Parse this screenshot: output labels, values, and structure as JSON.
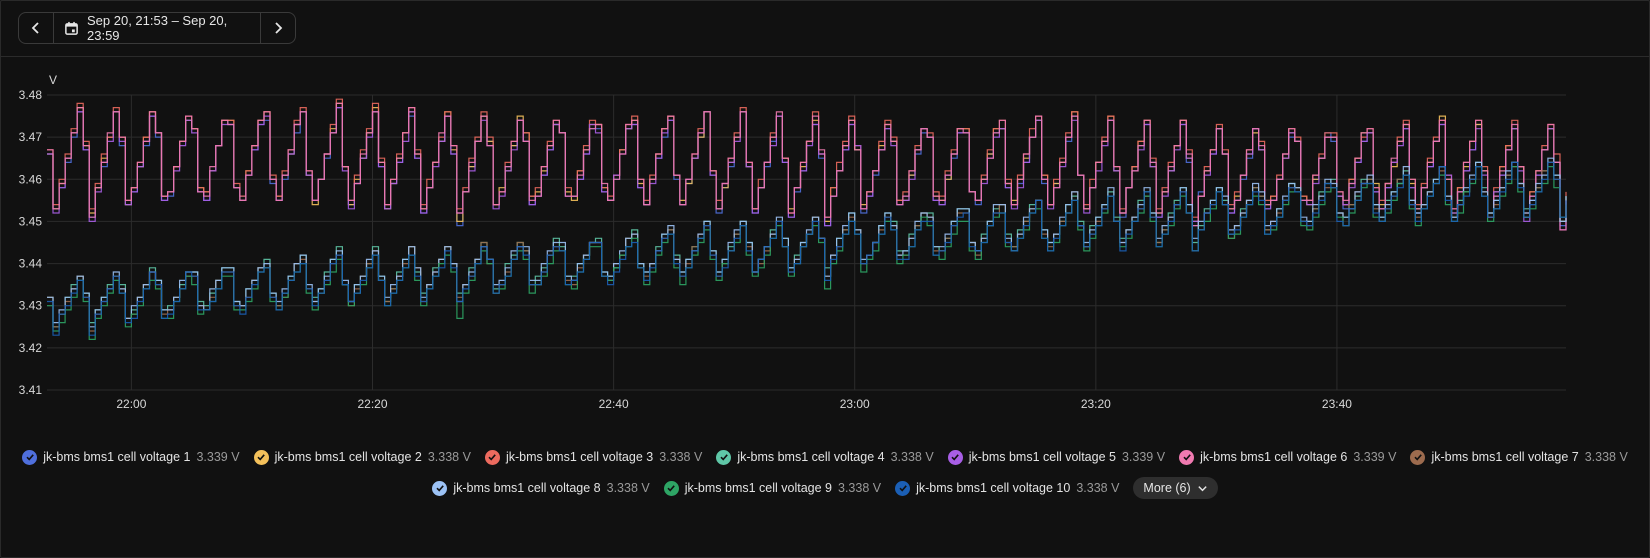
{
  "toolbar": {
    "range_label": "Sep 20, 21:53 – Sep 20, 23:59"
  },
  "icons": {
    "prev": "chevron-left-icon",
    "next": "chevron-right-icon",
    "calendar": "calendar-icon",
    "check": "check-icon",
    "more": "chevron-down-icon"
  },
  "chart_data": {
    "type": "line",
    "ylabel": "V",
    "ylim": [
      3.41,
      3.48
    ],
    "yticks": [
      "3.41",
      "3.42",
      "3.43",
      "3.44",
      "3.45",
      "3.46",
      "3.47",
      "3.48"
    ],
    "xlim": [
      "21:53",
      "23:59"
    ],
    "xticks": [
      "22:00",
      "22:20",
      "22:40",
      "23:00",
      "23:20",
      "23:40"
    ],
    "grid": true,
    "legend_position": "bottom",
    "groups": {
      "upper": {
        "cycle_minutes": 3.05,
        "peak_start": 3.479,
        "peak_end": 3.474,
        "trough_start": 3.453,
        "trough_end": 3.451
      },
      "lower": {
        "cycle_minutes": 3.05,
        "peak_start": 3.437,
        "peak_end": 3.465,
        "trough_start": 3.424,
        "trough_end": 3.452
      }
    },
    "series": [
      {
        "name": "jk-bms bms1 cell voltage 1",
        "value": "3.339 V",
        "color": "#4f6fdc",
        "group": "upper"
      },
      {
        "name": "jk-bms bms1 cell voltage 2",
        "value": "3.338 V",
        "color": "#f4c15b",
        "group": "upper"
      },
      {
        "name": "jk-bms bms1 cell voltage 3",
        "value": "3.338 V",
        "color": "#ec6a5e",
        "group": "upper"
      },
      {
        "name": "jk-bms bms1 cell voltage 4",
        "value": "3.338 V",
        "color": "#5fc7a7",
        "group": "lower"
      },
      {
        "name": "jk-bms bms1 cell voltage 5",
        "value": "3.339 V",
        "color": "#a85ee6",
        "group": "upper"
      },
      {
        "name": "jk-bms bms1 cell voltage 6",
        "value": "3.339 V",
        "color": "#f07ab0",
        "group": "upper"
      },
      {
        "name": "jk-bms bms1 cell voltage 7",
        "value": "3.338 V",
        "color": "#9c6b4e",
        "group": "lower"
      },
      {
        "name": "jk-bms bms1 cell voltage 8",
        "value": "3.338 V",
        "color": "#9cc2f5",
        "group": "lower"
      },
      {
        "name": "jk-bms bms1 cell voltage 9",
        "value": "3.338 V",
        "color": "#2ea565",
        "group": "lower"
      },
      {
        "name": "jk-bms bms1 cell voltage 10",
        "value": "3.338 V",
        "color": "#1b5fb5",
        "group": "lower"
      }
    ],
    "more_label": "More (6)"
  }
}
